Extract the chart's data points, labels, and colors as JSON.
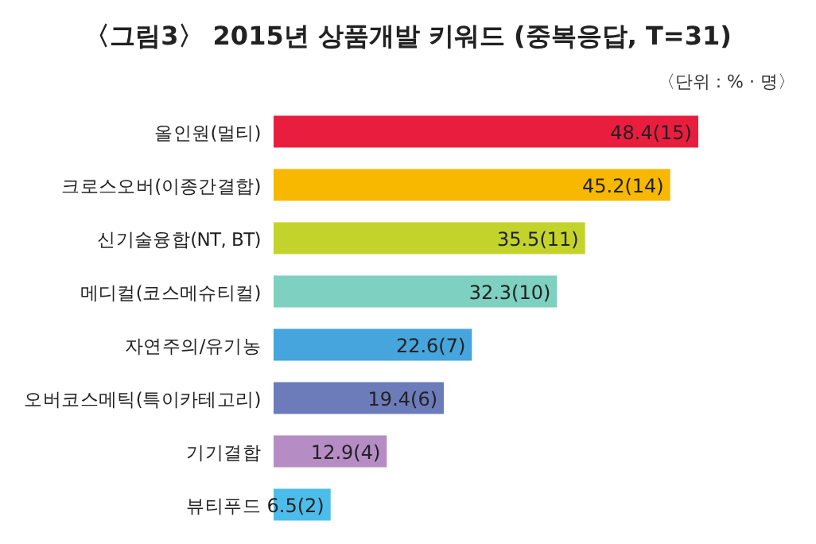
{
  "chart_data": {
    "type": "bar",
    "orientation": "horizontal",
    "title": "〈그림3〉 2015년 상품개발 키워드 (중복응답, T=31)",
    "annotations": [
      "〈단위 : % · 명〉"
    ],
    "categories": [
      "올인원(멀티)",
      "크로스오버(이종간결합)",
      "신기술융합(NT, BT)",
      "메디컬(코스메슈티컬)",
      "자연주의/유기농",
      "오버코스메틱(특이카테고리)",
      "기기결합",
      "뷰티푸드"
    ],
    "values": [
      48.4,
      45.2,
      35.5,
      32.3,
      22.6,
      19.4,
      12.9,
      6.5
    ],
    "value_labels": [
      "48.4(15)",
      "45.2(14)",
      "35.5(11)",
      "32.3(10)",
      "22.6(7)",
      "19.4(6)",
      "12.9(4)",
      "6.5(2)"
    ],
    "colors": [
      "#e91e3f",
      "#f8b800",
      "#c3d32c",
      "#7ed0c0",
      "#45a5dc",
      "#6c7cba",
      "#b68cc4",
      "#4cbdea"
    ]
  }
}
